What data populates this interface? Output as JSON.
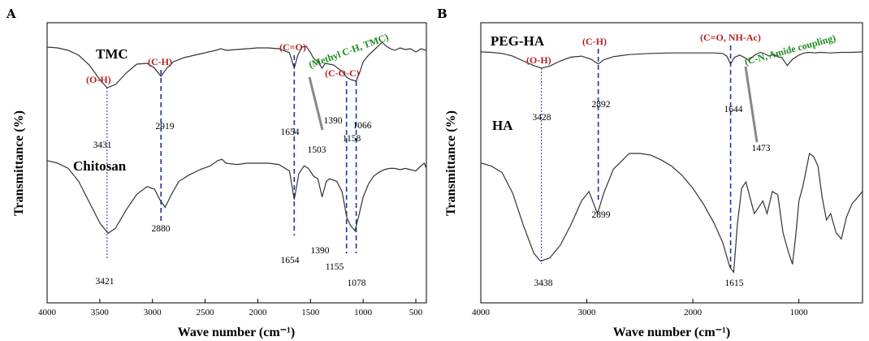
{
  "colors": {
    "curve": "#333333",
    "guide_line": "#1f2fb3",
    "group_red": "#b22222",
    "group_green": "#1e8a1e",
    "pointer": "#888888"
  },
  "chart_data": [
    {
      "type": "line",
      "panel": "A",
      "xlabel": "Wave number (cm⁻¹)",
      "ylabel": "Transmittance (%)",
      "xlim": [
        4000,
        400
      ],
      "xticks": [
        4000,
        3500,
        3000,
        2500,
        2000,
        1500,
        1000,
        500
      ],
      "y_ticks_shown": false,
      "series": [
        {
          "name": "TMC",
          "x": [
            4000,
            3900,
            3800,
            3700,
            3600,
            3500,
            3431,
            3350,
            3250,
            3150,
            3050,
            2980,
            2919,
            2870,
            2800,
            2700,
            2600,
            2500,
            2400,
            2350,
            2300,
            2200,
            2100,
            2000,
            1900,
            1800,
            1700,
            1654,
            1620,
            1580,
            1540,
            1503,
            1470,
            1430,
            1390,
            1360,
            1320,
            1280,
            1200,
            1158,
            1120,
            1066,
            1030,
            1000,
            950,
            900,
            850,
            820,
            780,
            740,
            700,
            650,
            600,
            550,
            500,
            450,
            400
          ],
          "values": [
            0.92,
            0.91,
            0.88,
            0.82,
            0.7,
            0.52,
            0.42,
            0.46,
            0.6,
            0.71,
            0.72,
            0.66,
            0.56,
            0.65,
            0.74,
            0.79,
            0.82,
            0.85,
            0.88,
            0.9,
            0.88,
            0.89,
            0.9,
            0.91,
            0.91,
            0.9,
            0.85,
            0.66,
            0.82,
            0.92,
            0.93,
            0.86,
            0.78,
            0.74,
            0.66,
            0.72,
            0.71,
            0.7,
            0.62,
            0.55,
            0.52,
            0.5,
            0.62,
            0.74,
            0.82,
            0.88,
            0.94,
            0.98,
            0.93,
            0.9,
            0.88,
            0.91,
            0.89,
            0.9,
            0.86,
            0.9,
            0.88
          ]
        },
        {
          "name": "Chitosan",
          "x": [
            4000,
            3900,
            3800,
            3700,
            3600,
            3500,
            3421,
            3350,
            3250,
            3150,
            3050,
            2980,
            2930,
            2880,
            2820,
            2750,
            2650,
            2550,
            2450,
            2380,
            2340,
            2300,
            2200,
            2100,
            2000,
            1900,
            1800,
            1700,
            1654,
            1610,
            1560,
            1520,
            1470,
            1430,
            1390,
            1350,
            1320,
            1250,
            1200,
            1155,
            1120,
            1078,
            1040,
            1000,
            950,
            900,
            850,
            800,
            750,
            700,
            650,
            600,
            550,
            500,
            450,
            420,
            400
          ],
          "values": [
            0.92,
            0.9,
            0.86,
            0.76,
            0.6,
            0.44,
            0.36,
            0.4,
            0.54,
            0.66,
            0.72,
            0.7,
            0.62,
            0.56,
            0.66,
            0.76,
            0.81,
            0.85,
            0.88,
            0.92,
            0.93,
            0.9,
            0.89,
            0.9,
            0.9,
            0.9,
            0.89,
            0.84,
            0.62,
            0.82,
            0.88,
            0.86,
            0.8,
            0.78,
            0.64,
            0.76,
            0.78,
            0.76,
            0.68,
            0.48,
            0.42,
            0.38,
            0.5,
            0.64,
            0.74,
            0.8,
            0.83,
            0.85,
            0.86,
            0.86,
            0.85,
            0.86,
            0.85,
            0.84,
            0.88,
            0.9,
            0.86
          ]
        }
      ],
      "peaks": [
        {
          "text": "3431",
          "x": 3431,
          "series": "TMC"
        },
        {
          "text": "2919",
          "x": 2919,
          "series": "TMC"
        },
        {
          "text": "1654",
          "x": 1654,
          "series": "TMC"
        },
        {
          "text": "1390",
          "x": 1390,
          "series": "TMC"
        },
        {
          "text": "1158",
          "x": 1158,
          "series": "TMC"
        },
        {
          "text": "1066",
          "x": 1066,
          "series": "TMC"
        },
        {
          "text": "1503",
          "x": 1503,
          "series": "TMC"
        },
        {
          "text": "3421",
          "x": 3421,
          "series": "Chitosan"
        },
        {
          "text": "2880",
          "x": 2880,
          "series": "Chitosan"
        },
        {
          "text": "1654",
          "x": 1654,
          "series": "Chitosan"
        },
        {
          "text": "1390",
          "x": 1390,
          "series": "Chitosan"
        },
        {
          "text": "1155",
          "x": 1155,
          "series": "Chitosan"
        },
        {
          "text": "1078",
          "x": 1078,
          "series": "Chitosan"
        }
      ],
      "group_labels": [
        {
          "text": "(O-H)",
          "color": "red"
        },
        {
          "text": "(C-H)",
          "color": "red"
        },
        {
          "text": "(C=O)",
          "color": "red"
        },
        {
          "text": "(C-O-C)",
          "color": "red"
        },
        {
          "text": "(Methyl C-H, TMC)",
          "color": "green"
        }
      ]
    },
    {
      "type": "line",
      "panel": "B",
      "xlabel": "Wave number  (cm⁻¹)",
      "ylabel": "Transmittance (%)",
      "xlim": [
        4000,
        400
      ],
      "xticks": [
        4000,
        3000,
        2000,
        1000
      ],
      "y_ticks_shown": false,
      "series": [
        {
          "name": "PEG-HA",
          "x": [
            4000,
            3900,
            3800,
            3700,
            3600,
            3500,
            3428,
            3350,
            3250,
            3150,
            3050,
            2960,
            2892,
            2840,
            2750,
            2600,
            2400,
            2200,
            2000,
            1900,
            1800,
            1720,
            1680,
            1644,
            1610,
            1560,
            1520,
            1473,
            1440,
            1400,
            1360,
            1320,
            1280,
            1240,
            1200,
            1160,
            1110,
            1060,
            1000,
            950,
            900,
            850,
            800,
            700,
            600,
            500,
            400
          ],
          "values": [
            0.94,
            0.93,
            0.91,
            0.86,
            0.77,
            0.68,
            0.63,
            0.67,
            0.77,
            0.84,
            0.86,
            0.8,
            0.71,
            0.79,
            0.85,
            0.89,
            0.91,
            0.92,
            0.92,
            0.92,
            0.92,
            0.91,
            0.86,
            0.71,
            0.83,
            0.88,
            0.84,
            0.78,
            0.84,
            0.9,
            0.93,
            0.9,
            0.86,
            0.9,
            0.85,
            0.83,
            0.68,
            0.8,
            0.88,
            0.92,
            0.93,
            0.92,
            0.93,
            0.92,
            0.93,
            0.93,
            0.94
          ]
        },
        {
          "name": "HA",
          "x": [
            4000,
            3900,
            3800,
            3700,
            3600,
            3500,
            3438,
            3350,
            3250,
            3150,
            3050,
            2980,
            2899,
            2840,
            2750,
            2600,
            2500,
            2400,
            2300,
            2200,
            2100,
            2000,
            1900,
            1800,
            1720,
            1650,
            1615,
            1580,
            1540,
            1500,
            1460,
            1420,
            1380,
            1340,
            1300,
            1250,
            1200,
            1150,
            1100,
            1060,
            1030,
            1000,
            960,
            930,
            900,
            860,
            820,
            780,
            740,
            700,
            650,
            600,
            550,
            500,
            450,
            400
          ],
          "values": [
            0.74,
            0.72,
            0.68,
            0.55,
            0.35,
            0.17,
            0.12,
            0.14,
            0.22,
            0.35,
            0.5,
            0.56,
            0.42,
            0.55,
            0.7,
            0.8,
            0.8,
            0.79,
            0.76,
            0.72,
            0.66,
            0.58,
            0.48,
            0.36,
            0.24,
            0.08,
            0.05,
            0.35,
            0.58,
            0.62,
            0.52,
            0.42,
            0.46,
            0.5,
            0.42,
            0.56,
            0.54,
            0.3,
            0.18,
            0.1,
            0.28,
            0.5,
            0.6,
            0.7,
            0.8,
            0.78,
            0.72,
            0.52,
            0.38,
            0.42,
            0.3,
            0.26,
            0.4,
            0.48,
            0.52,
            0.56
          ]
        }
      ],
      "peaks": [
        {
          "text": "3428",
          "x": 3428,
          "series": "PEG-HA"
        },
        {
          "text": "2892",
          "x": 2892,
          "series": "PEG-HA"
        },
        {
          "text": "1644",
          "x": 1644,
          "series": "PEG-HA"
        },
        {
          "text": "1473",
          "x": 1473,
          "series": "PEG-HA"
        },
        {
          "text": "3438",
          "x": 3438,
          "series": "HA"
        },
        {
          "text": "2899",
          "x": 2899,
          "series": "HA"
        },
        {
          "text": "1615",
          "x": 1615,
          "series": "HA"
        }
      ],
      "group_labels": [
        {
          "text": "(O-H)",
          "color": "red"
        },
        {
          "text": "(C-H)",
          "color": "red"
        },
        {
          "text": "(C=O, NH-Ac)",
          "color": "red"
        },
        {
          "text": "(C-N, Amide coupling)",
          "color": "green"
        }
      ]
    }
  ]
}
